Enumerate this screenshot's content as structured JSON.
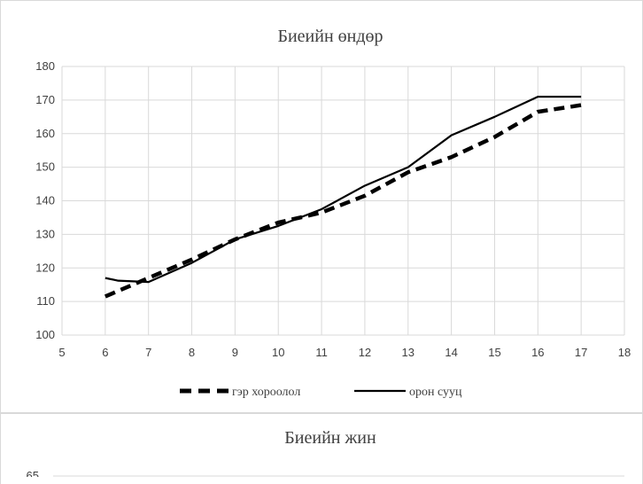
{
  "chart_data": [
    {
      "type": "line",
      "title": "Биеийн өндөр",
      "xlabel": "",
      "ylabel": "",
      "xlim": [
        5,
        18
      ],
      "ylim": [
        100,
        180
      ],
      "x_ticks": [
        5,
        6,
        7,
        8,
        9,
        10,
        11,
        12,
        13,
        14,
        15,
        16,
        17,
        18
      ],
      "y_ticks": [
        100,
        110,
        120,
        130,
        140,
        150,
        160,
        170,
        180
      ],
      "grid": true,
      "legend_position": "bottom",
      "series": [
        {
          "name": "гэр хороолол",
          "style": "dashed",
          "color": "#000000",
          "x": [
            6,
            7,
            8,
            9,
            10,
            11,
            12,
            13,
            14,
            15,
            16,
            17
          ],
          "y": [
            111.5,
            117,
            122.5,
            128.5,
            133.5,
            136.5,
            141.5,
            148.5,
            153,
            159,
            166.5,
            168.5
          ]
        },
        {
          "name": "орон сууц",
          "style": "solid",
          "color": "#000000",
          "x": [
            6,
            6.3,
            7,
            8,
            9,
            10,
            11,
            12,
            13,
            14,
            15,
            16,
            17
          ],
          "y": [
            117,
            116.2,
            115.8,
            121.5,
            128.5,
            132.5,
            137.5,
            144.5,
            150,
            159.5,
            165,
            171,
            171
          ]
        }
      ]
    },
    {
      "type": "line",
      "title": "Биеийн жин",
      "y_ticks_visible": [
        65
      ],
      "series": []
    }
  ]
}
